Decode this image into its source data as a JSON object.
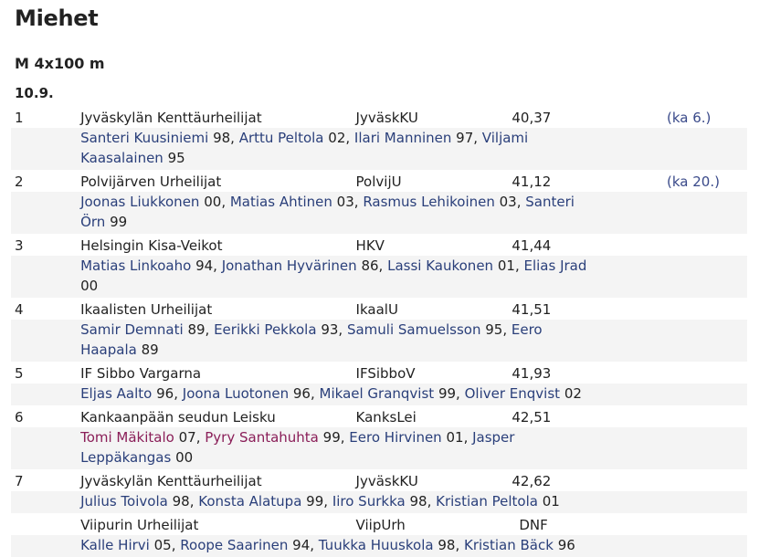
{
  "page": {
    "title": "Miehet",
    "event": "M 4x100 m",
    "date": "10.9."
  },
  "results": [
    {
      "place": "1",
      "team": "Jyväskylän Kenttäurheilijat",
      "abbr": "JyväskKU",
      "time": "40,37",
      "note": "(ka 6.)",
      "runners": [
        {
          "name": "Santeri Kuusiniemi",
          "year": "98"
        },
        {
          "name": "Arttu Peltola",
          "year": "02"
        },
        {
          "name": "Ilari Manninen",
          "year": "97"
        },
        {
          "name": "Viljami Kaasalainen",
          "year": "95"
        }
      ]
    },
    {
      "place": "2",
      "team": "Polvijärven Urheilijat",
      "abbr": "PolvijU",
      "time": "41,12",
      "note": "(ka 20.)",
      "runners": [
        {
          "name": "Joonas Liukkonen",
          "year": "00"
        },
        {
          "name": "Matias Ahtinen",
          "year": "03"
        },
        {
          "name": "Rasmus Lehikoinen",
          "year": "03"
        },
        {
          "name": "Santeri Örn",
          "year": "99"
        }
      ]
    },
    {
      "place": "3",
      "team": "Helsingin Kisa-Veikot",
      "abbr": "HKV",
      "time": "41,44",
      "note": "",
      "runners": [
        {
          "name": "Matias Linkoaho",
          "year": "94"
        },
        {
          "name": "Jonathan Hyvärinen",
          "year": "86"
        },
        {
          "name": "Lassi Kaukonen",
          "year": "01"
        },
        {
          "name": "Elias Jrad",
          "year": "00"
        }
      ]
    },
    {
      "place": "4",
      "team": "Ikaalisten Urheilijat",
      "abbr": "IkaalU",
      "time": "41,51",
      "note": "",
      "runners": [
        {
          "name": "Samir Demnati",
          "year": "89"
        },
        {
          "name": "Eerikki Pekkola",
          "year": "93"
        },
        {
          "name": "Samuli Samuelsson",
          "year": "95"
        },
        {
          "name": "Eero Haapala",
          "year": "89"
        }
      ]
    },
    {
      "place": "5",
      "team": "IF Sibbo Vargarna",
      "abbr": "IFSibboV",
      "time": "41,93",
      "note": "",
      "runners": [
        {
          "name": "Eljas Aalto",
          "year": "96"
        },
        {
          "name": "Joona Luotonen",
          "year": "96"
        },
        {
          "name": "Mikael Granqvist",
          "year": "99"
        },
        {
          "name": "Oliver Enqvist",
          "year": "02"
        }
      ]
    },
    {
      "place": "6",
      "team": "Kankaanpään seudun Leisku",
      "abbr": "KanksLei",
      "time": "42,51",
      "note": "",
      "runners": [
        {
          "name": "Tomi Mäkitalo",
          "year": "07",
          "visited": true
        },
        {
          "name": "Pyry Santahuhta",
          "year": "99",
          "visited": true
        },
        {
          "name": "Eero Hirvinen",
          "year": "01"
        },
        {
          "name": "Jasper Leppäkangas",
          "year": "00"
        }
      ]
    },
    {
      "place": "7",
      "team": "Jyväskylän Kenttäurheilijat",
      "abbr": "JyväskKU",
      "time": "42,62",
      "note": "",
      "runners": [
        {
          "name": "Julius Toivola",
          "year": "98"
        },
        {
          "name": "Konsta Alatupa",
          "year": "99"
        },
        {
          "name": "Iiro Surkka",
          "year": "98"
        },
        {
          "name": "Kristian Peltola",
          "year": "01"
        }
      ]
    },
    {
      "place": "",
      "team": "Viipurin Urheilijat",
      "abbr": "ViipUrh",
      "time": "DNF",
      "note": "",
      "runners": [
        {
          "name": "Kalle Hirvi",
          "year": "05"
        },
        {
          "name": "Roope Saarinen",
          "year": "94"
        },
        {
          "name": "Tuukka Huuskola",
          "year": "98"
        },
        {
          "name": "Kristian Bäck",
          "year": "96"
        }
      ]
    }
  ],
  "colors": {
    "link": "#2a3f7a",
    "visited_link": "#8a1e58",
    "row_shade": "#f4f4f4",
    "text": "#222222"
  }
}
